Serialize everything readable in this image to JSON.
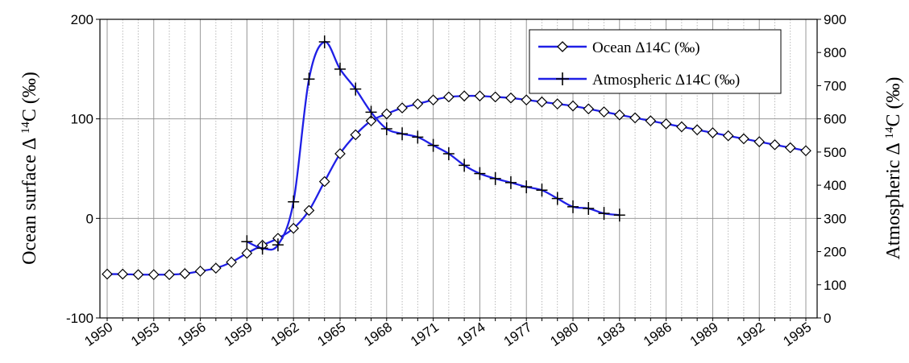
{
  "chart_data": {
    "type": "line",
    "title": "",
    "xlabel": "",
    "ylabel": "Ocean surface Δ 14C (‰)",
    "ylabel_parts": [
      "Ocean surface Δ ",
      "14",
      "C (‰)"
    ],
    "y2label": "Atmospheric Δ 14C (‰)",
    "y2label_parts": [
      "Atmospheric Δ ",
      "14",
      "C (‰)"
    ],
    "xlim": [
      1950,
      1995
    ],
    "ylim": [
      -100,
      200
    ],
    "y2lim": [
      0,
      900
    ],
    "x_tick_labels": [
      "1950",
      "1953",
      "1956",
      "1959",
      "1962",
      "1965",
      "1968",
      "1971",
      "1974",
      "1977",
      "1980",
      "1983",
      "1986",
      "1989",
      "1992",
      "1995"
    ],
    "y_tick_labels": [
      "-100",
      "0",
      "100",
      "200"
    ],
    "y2_tick_labels": [
      "0",
      "100",
      "200",
      "300",
      "400",
      "500",
      "600",
      "700",
      "800",
      "900"
    ],
    "grid": {
      "vertical_major": true,
      "vertical_minor_dotted": true,
      "horizontal": true
    },
    "legend_position": "top-right",
    "line_color": "#1f1fe6",
    "series": [
      {
        "name": "Ocean Δ14C (‰)",
        "axis": "left",
        "marker": "diamond",
        "x": [
          1950,
          1951,
          1952,
          1953,
          1954,
          1955,
          1956,
          1957,
          1958,
          1959,
          1960,
          1961,
          1962,
          1963,
          1964,
          1965,
          1966,
          1967,
          1968,
          1969,
          1970,
          1971,
          1972,
          1973,
          1974,
          1975,
          1976,
          1977,
          1978,
          1979,
          1980,
          1981,
          1982,
          1983,
          1984,
          1985,
          1986,
          1987,
          1988,
          1989,
          1990,
          1991,
          1992,
          1993,
          1994,
          1995
        ],
        "y": [
          -56,
          -56,
          -56.5,
          -56.5,
          -56.5,
          -55.5,
          -53,
          -50,
          -44,
          -35,
          -27,
          -20,
          -10,
          8,
          37,
          65,
          84,
          98,
          105,
          111,
          115,
          119,
          122,
          123,
          123,
          122,
          121,
          119,
          117,
          115,
          113,
          110,
          107,
          104,
          101,
          98,
          95,
          92,
          89,
          86,
          83,
          80,
          77,
          74,
          71,
          68
        ]
      },
      {
        "name": "Atmospheric Δ14C (‰)",
        "axis": "right",
        "marker": "plus",
        "x": [
          1959,
          1960,
          1961,
          1962,
          1963,
          1964,
          1965,
          1966,
          1967,
          1968,
          1969,
          1970,
          1971,
          1972,
          1973,
          1974,
          1975,
          1976,
          1977,
          1978,
          1979,
          1980,
          1981,
          1982,
          1983
        ],
        "y": [
          230,
          210,
          220,
          350,
          720,
          832,
          750,
          690,
          620,
          570,
          555,
          545,
          520,
          495,
          460,
          435,
          420,
          408,
          395,
          385,
          360,
          335,
          330,
          315,
          310
        ]
      }
    ]
  }
}
